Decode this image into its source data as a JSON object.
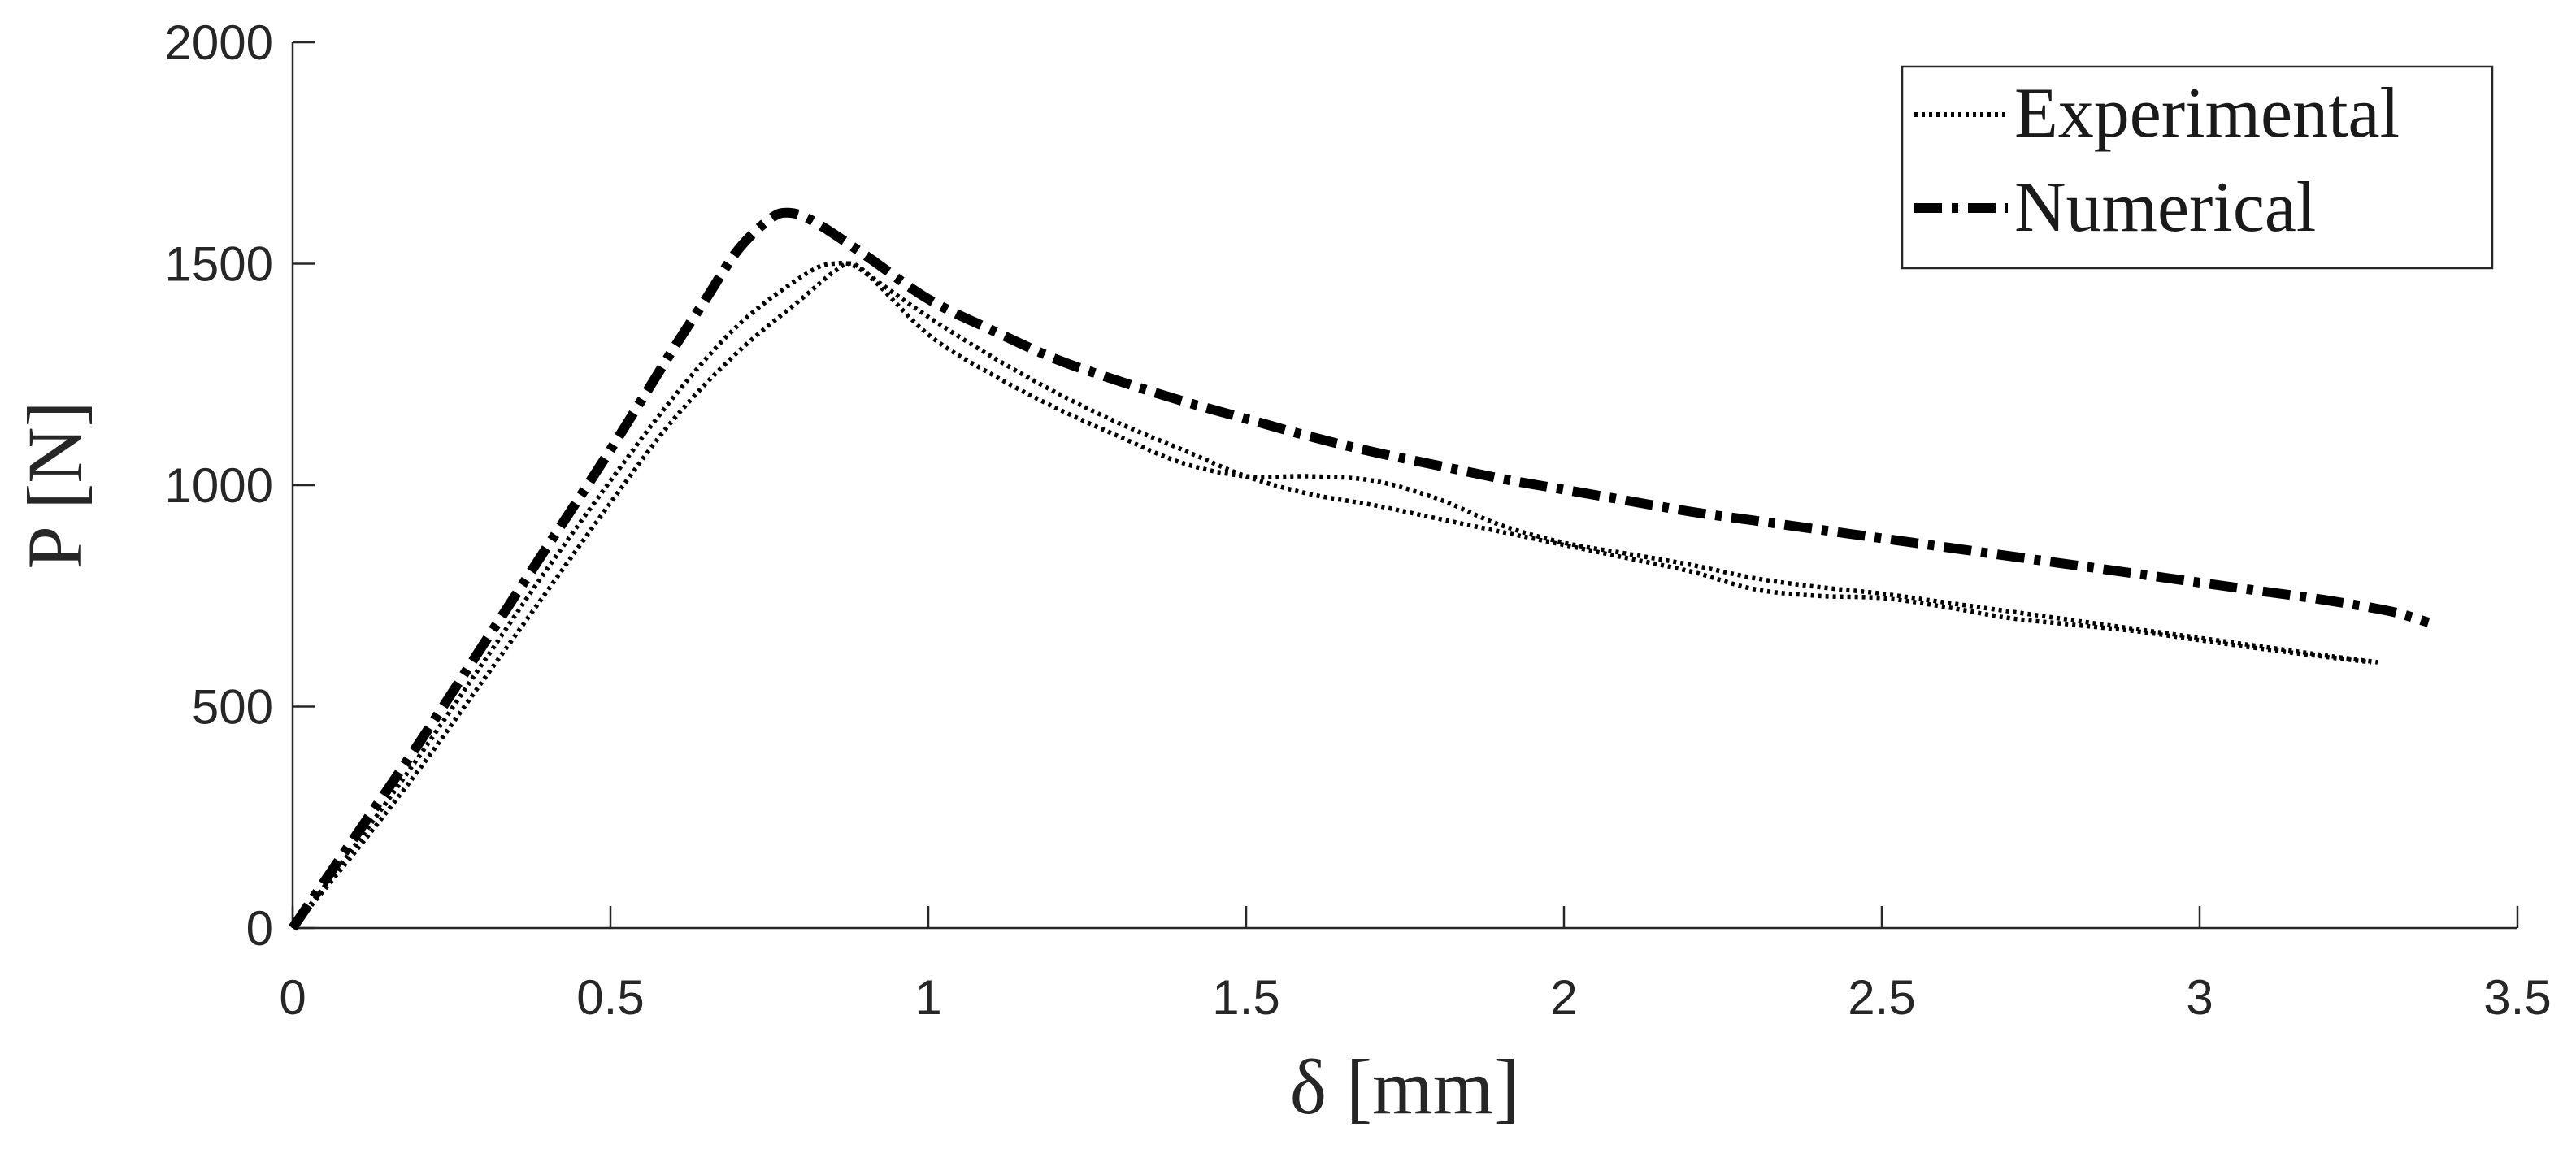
{
  "chart_data": {
    "type": "line",
    "xlabel": "δ [mm]",
    "ylabel": "P [N]",
    "xlim": [
      0,
      3.5
    ],
    "ylim": [
      0,
      2000
    ],
    "xticks": [
      0,
      0.5,
      1,
      1.5,
      2,
      2.5,
      3,
      3.5
    ],
    "xtick_labels": [
      "0",
      "0.5",
      "1",
      "1.5",
      "2",
      "2.5",
      "3",
      "3.5"
    ],
    "yticks": [
      0,
      500,
      1000,
      1500,
      2000
    ],
    "ytick_labels": [
      "0",
      "500",
      "1000",
      "1500",
      "2000"
    ],
    "grid": false,
    "legend_position": "top-right",
    "series": [
      {
        "name": "Experimental",
        "style": "dotted",
        "color": "#000000",
        "points": [
          [
            0,
            0
          ],
          [
            0.1,
            190
          ],
          [
            0.2,
            390
          ],
          [
            0.3,
            600
          ],
          [
            0.4,
            810
          ],
          [
            0.5,
            1010
          ],
          [
            0.6,
            1200
          ],
          [
            0.7,
            1360
          ],
          [
            0.8,
            1470
          ],
          [
            0.85,
            1500
          ],
          [
            0.9,
            1480
          ],
          [
            1.0,
            1340
          ],
          [
            1.1,
            1250
          ],
          [
            1.2,
            1175
          ],
          [
            1.3,
            1110
          ],
          [
            1.4,
            1050
          ],
          [
            1.5,
            1020
          ],
          [
            1.6,
            1020
          ],
          [
            1.7,
            1010
          ],
          [
            1.8,
            970
          ],
          [
            1.9,
            910
          ],
          [
            2.0,
            870
          ],
          [
            2.1,
            845
          ],
          [
            2.2,
            820
          ],
          [
            2.3,
            790
          ],
          [
            2.4,
            770
          ],
          [
            2.5,
            755
          ],
          [
            2.6,
            735
          ],
          [
            2.7,
            715
          ],
          [
            2.8,
            695
          ],
          [
            2.9,
            675
          ],
          [
            3.0,
            655
          ],
          [
            3.1,
            635
          ],
          [
            3.2,
            615
          ],
          [
            3.28,
            600
          ]
        ]
      },
      {
        "name": "",
        "style": "dotted",
        "color": "#000000",
        "points": [
          [
            0,
            0
          ],
          [
            0.1,
            175
          ],
          [
            0.2,
            360
          ],
          [
            0.3,
            560
          ],
          [
            0.4,
            760
          ],
          [
            0.5,
            960
          ],
          [
            0.6,
            1150
          ],
          [
            0.7,
            1300
          ],
          [
            0.8,
            1420
          ],
          [
            0.85,
            1480
          ],
          [
            0.88,
            1500
          ],
          [
            0.92,
            1460
          ],
          [
            1.0,
            1380
          ],
          [
            1.1,
            1290
          ],
          [
            1.2,
            1210
          ],
          [
            1.3,
            1140
          ],
          [
            1.4,
            1080
          ],
          [
            1.5,
            1020
          ],
          [
            1.6,
            980
          ],
          [
            1.7,
            955
          ],
          [
            1.8,
            925
          ],
          [
            1.9,
            895
          ],
          [
            2.0,
            865
          ],
          [
            2.1,
            835
          ],
          [
            2.2,
            805
          ],
          [
            2.3,
            765
          ],
          [
            2.4,
            750
          ],
          [
            2.5,
            745
          ],
          [
            2.6,
            725
          ],
          [
            2.7,
            700
          ],
          [
            2.8,
            685
          ],
          [
            2.9,
            670
          ],
          [
            3.0,
            650
          ],
          [
            3.1,
            630
          ],
          [
            3.2,
            612
          ],
          [
            3.27,
            600
          ]
        ]
      },
      {
        "name": "Numerical",
        "style": "dashdot",
        "color": "#000000",
        "points": [
          [
            0,
            0
          ],
          [
            0.1,
            210
          ],
          [
            0.2,
            420
          ],
          [
            0.3,
            640
          ],
          [
            0.4,
            860
          ],
          [
            0.5,
            1080
          ],
          [
            0.6,
            1310
          ],
          [
            0.65,
            1420
          ],
          [
            0.7,
            1530
          ],
          [
            0.75,
            1600
          ],
          [
            0.78,
            1615
          ],
          [
            0.82,
            1595
          ],
          [
            0.9,
            1520
          ],
          [
            1.0,
            1420
          ],
          [
            1.1,
            1350
          ],
          [
            1.2,
            1285
          ],
          [
            1.3,
            1235
          ],
          [
            1.4,
            1190
          ],
          [
            1.5,
            1150
          ],
          [
            1.6,
            1110
          ],
          [
            1.7,
            1075
          ],
          [
            1.8,
            1045
          ],
          [
            1.9,
            1015
          ],
          [
            2.0,
            990
          ],
          [
            2.1,
            965
          ],
          [
            2.2,
            940
          ],
          [
            2.3,
            920
          ],
          [
            2.4,
            900
          ],
          [
            2.5,
            880
          ],
          [
            2.6,
            860
          ],
          [
            2.7,
            840
          ],
          [
            2.8,
            820
          ],
          [
            2.9,
            800
          ],
          [
            3.0,
            780
          ],
          [
            3.1,
            760
          ],
          [
            3.2,
            740
          ],
          [
            3.3,
            715
          ],
          [
            3.36,
            690
          ]
        ]
      }
    ]
  }
}
